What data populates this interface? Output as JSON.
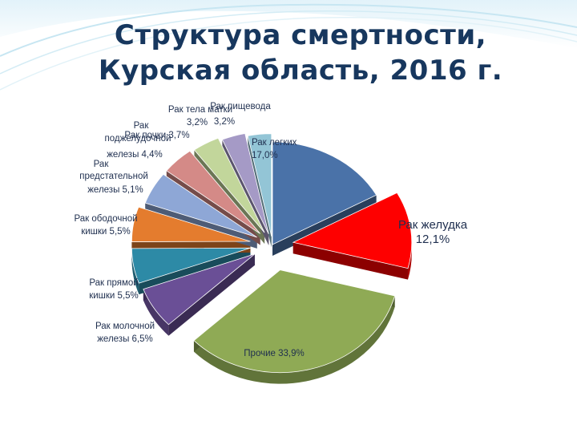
{
  "title_line1": "Структура смертности,",
  "title_line2": "Курская область, 2016 г.",
  "chart_data": {
    "type": "pie",
    "title": "Структура смертности, Курская область, 2016 г.",
    "exploded": true,
    "three_d": true,
    "slices": [
      {
        "name": "Рак легких",
        "value": 17.0,
        "value_label": "17,0%",
        "color": "#4a72a8",
        "label_lines": [
          "Рак легких",
          "17,0%"
        ],
        "explode": 0
      },
      {
        "name": "Рак желудка",
        "value": 12.1,
        "value_label": "12,1%",
        "color": "#fe0000",
        "label_lines": [
          "Рак желудка",
          "12,1%"
        ],
        "explode": 26
      },
      {
        "name": "Прочие",
        "value": 33.9,
        "value_label": "33,9%",
        "color": "#8faa55",
        "label_lines": [
          "Прочие  33,9%"
        ],
        "explode": 38
      },
      {
        "name": "Рак молочной железы",
        "value": 6.5,
        "value_label": "6,5%",
        "color": "#6a4f96",
        "label_lines": [
          "Рак молочной",
          "железы 6,5%"
        ],
        "explode": 26
      },
      {
        "name": "Рак прямой кишки",
        "value": 5.5,
        "value_label": "5,5%",
        "color": "#2d8aa6",
        "label_lines": [
          "Рак прямой",
          "кишки 5,5%"
        ],
        "explode": 28
      },
      {
        "name": "Рак ободочной кишки",
        "value": 5.5,
        "value_label": "5,5%",
        "color": "#e47c2e",
        "label_lines": [
          "Рак ободочной",
          "кишки   5,5%"
        ],
        "explode": 28
      },
      {
        "name": "Рак предстательной железы",
        "value": 5.1,
        "value_label": "5,1%",
        "color": "#8ea7d6",
        "label_lines": [
          "Рак",
          "предстательной",
          "железы   5,1%"
        ],
        "explode": 22
      },
      {
        "name": "Рак поджелудочной железы",
        "value": 4.4,
        "value_label": "4,4%",
        "color": "#d48a87",
        "label_lines": [
          "Рак",
          "поджелудочной",
          "железы  4,4%"
        ],
        "explode": 22
      },
      {
        "name": "Рак почки",
        "value": 3.7,
        "value_label": "3,7%",
        "color": "#c2d69b",
        "label_lines": [
          "Рак почки 3,7%"
        ],
        "explode": 20
      },
      {
        "name": "Рак тела матки",
        "value": 3.2,
        "value_label": "3,2%",
        "color": "#a59ac6",
        "label_lines": [
          "Рак тела матки",
          "3,2%"
        ],
        "explode": 16
      },
      {
        "name": "Рак пищевода",
        "value": 3.2,
        "value_label": "3,2%",
        "color": "#93c5d6",
        "label_lines": [
          "Рак пищевода",
          "3,2%"
        ],
        "explode": 12
      }
    ]
  }
}
